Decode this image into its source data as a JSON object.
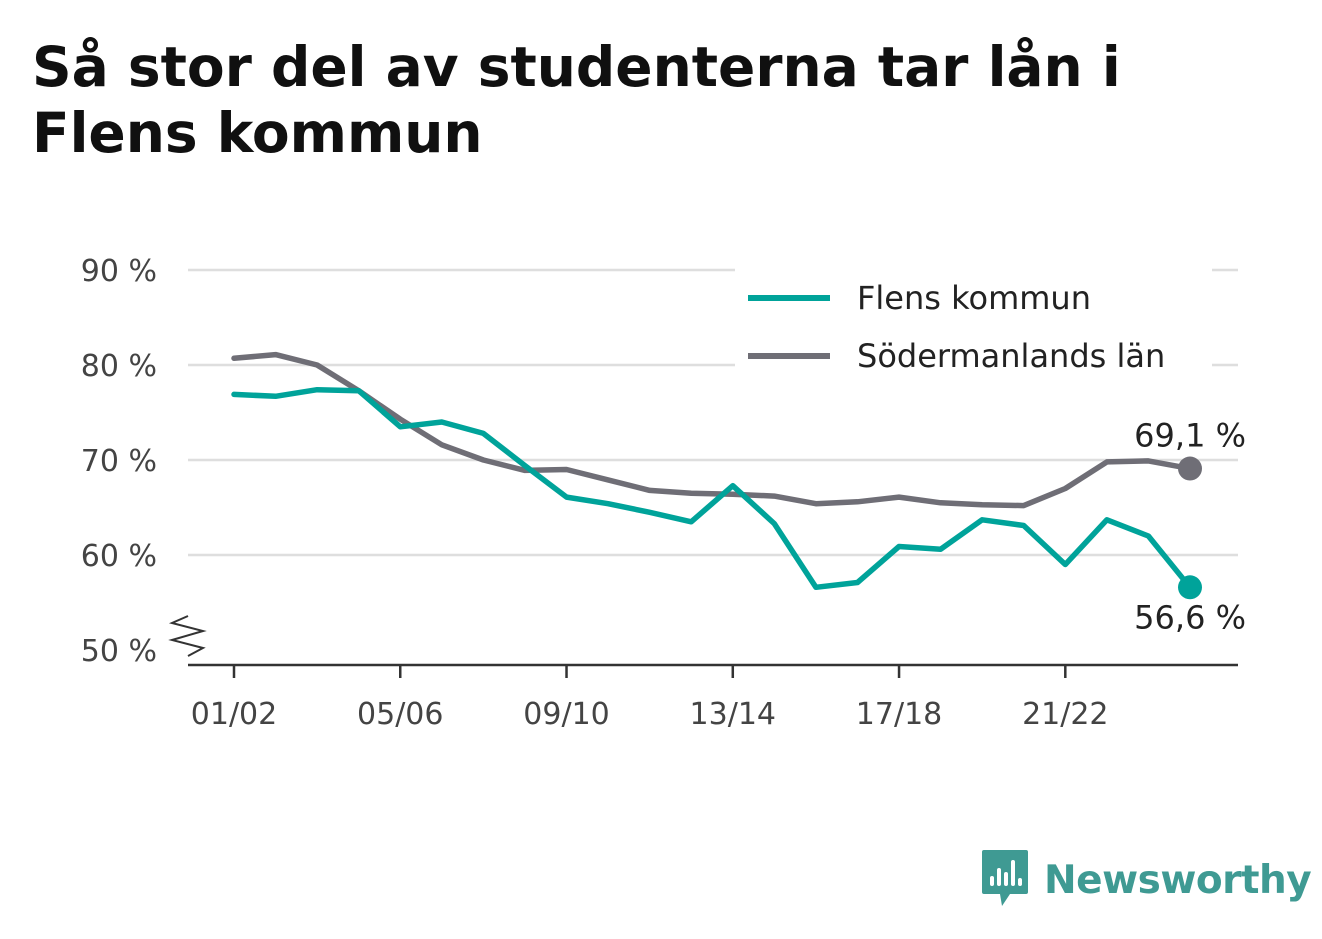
{
  "title": "Så stor del av studenterna tar lån i Flens kommun",
  "brand": {
    "name": "Newsworthy",
    "icon": "newsworthy-logo-icon",
    "color": "#3f9a93"
  },
  "chart_data": {
    "type": "line",
    "title": "Så stor del av studenterna tar lån i Flens kommun",
    "xlabel": "",
    "ylabel": "",
    "x": [
      "01/02",
      "02/03",
      "03/04",
      "04/05",
      "05/06",
      "06/07",
      "07/08",
      "08/09",
      "09/10",
      "10/11",
      "11/12",
      "12/13",
      "13/14",
      "14/15",
      "15/16",
      "16/17",
      "17/18",
      "18/19",
      "19/20",
      "20/21",
      "21/22",
      "22/23",
      "23/24",
      "24/25"
    ],
    "x_tick_labels": [
      "01/02",
      "05/06",
      "09/10",
      "13/14",
      "17/18",
      "21/22"
    ],
    "ylim": [
      50,
      90
    ],
    "y_ticks": [
      50,
      60,
      70,
      80,
      90
    ],
    "y_tick_labels": [
      "50 %",
      "60 %",
      "70 %",
      "80 %",
      "90 %"
    ],
    "y_axis_break": true,
    "grid": true,
    "legend_position": "top-right",
    "series": [
      {
        "name": "Flens kommun",
        "color": "#00a39a",
        "values": [
          76.9,
          76.7,
          77.4,
          77.3,
          73.5,
          74.0,
          72.8,
          69.4,
          66.1,
          65.4,
          64.5,
          63.5,
          67.3,
          63.3,
          56.6,
          57.1,
          60.9,
          60.6,
          63.7,
          63.1,
          59.0,
          63.7,
          62.0,
          56.6
        ],
        "end_label": "56,6 %"
      },
      {
        "name": "Södermanlands län",
        "color": "#6f6e76",
        "values": [
          80.7,
          81.1,
          80.0,
          77.3,
          74.3,
          71.6,
          70.0,
          68.9,
          69.0,
          67.9,
          66.8,
          66.5,
          66.4,
          66.2,
          65.4,
          65.6,
          66.1,
          65.5,
          65.3,
          65.2,
          67.0,
          69.8,
          69.9,
          69.1
        ],
        "end_label": "69,1 %"
      }
    ]
  }
}
